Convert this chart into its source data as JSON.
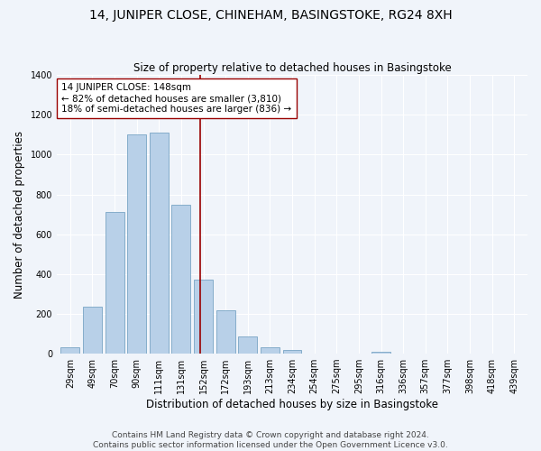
{
  "title": "14, JUNIPER CLOSE, CHINEHAM, BASINGSTOKE, RG24 8XH",
  "subtitle": "Size of property relative to detached houses in Basingstoke",
  "xlabel": "Distribution of detached houses by size in Basingstoke",
  "ylabel": "Number of detached properties",
  "footer_line1": "Contains HM Land Registry data © Crown copyright and database right 2024.",
  "footer_line2": "Contains public sector information licensed under the Open Government Licence v3.0.",
  "bar_labels": [
    "29sqm",
    "49sqm",
    "70sqm",
    "90sqm",
    "111sqm",
    "131sqm",
    "152sqm",
    "172sqm",
    "193sqm",
    "213sqm",
    "234sqm",
    "254sqm",
    "275sqm",
    "295sqm",
    "316sqm",
    "336sqm",
    "357sqm",
    "377sqm",
    "398sqm",
    "418sqm",
    "439sqm"
  ],
  "bar_values": [
    30,
    235,
    710,
    1100,
    1110,
    750,
    370,
    220,
    85,
    30,
    20,
    0,
    0,
    0,
    10,
    0,
    0,
    0,
    0,
    0,
    0
  ],
  "bar_color": "#b8d0e8",
  "bar_edge_color": "#6699bb",
  "vline_x": 5.85,
  "vline_color": "#990000",
  "annotation_text": "14 JUNIPER CLOSE: 148sqm\n← 82% of detached houses are smaller (3,810)\n18% of semi-detached houses are larger (836) →",
  "annotation_box_color": "#ffffff",
  "annotation_box_edge": "#990000",
  "ylim": [
    0,
    1400
  ],
  "yticks": [
    0,
    200,
    400,
    600,
    800,
    1000,
    1200,
    1400
  ],
  "bg_color": "#f0f4fa",
  "grid_color": "#ffffff",
  "title_fontsize": 10,
  "subtitle_fontsize": 8.5,
  "axis_label_fontsize": 8.5,
  "tick_fontsize": 7,
  "annotation_fontsize": 7.5,
  "footer_fontsize": 6.5
}
